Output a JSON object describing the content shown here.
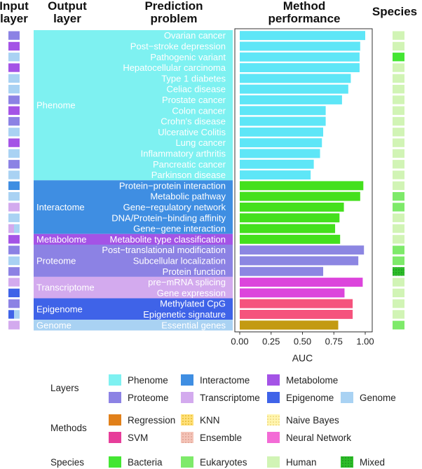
{
  "headers": {
    "input_layer": [
      "Input",
      "layer"
    ],
    "output_layer": [
      "Output",
      "layer"
    ],
    "prediction_problem": [
      "Prediction",
      "problem"
    ],
    "method_performance": [
      "Method",
      "performance"
    ],
    "species": "Species"
  },
  "colors": {
    "layers": {
      "Phenome": "#7ef1f1",
      "Interactome": "#3f8ee2",
      "Metabolome": "#a453e6",
      "Proteome": "#8c82e4",
      "Transcriptome": "#d3aaee",
      "Epigenome": "#3f63e8",
      "Genome": "#a9d2f3"
    },
    "methods": {
      "Regression": "#e1801a",
      "SVM": "#e73d9a",
      "KNN": "#ffe07a",
      "Ensemble": "#f0b6a8",
      "Naive Bayes": "#fff1a0",
      "Neural Network": "#f36bd6"
    },
    "bars": {
      "Neural Network": "#5ee6f7",
      "Interactome-NN": "#44e01d",
      "Proteome-NN": "#8c86e2",
      "Transcriptome-NN": "#dc45dc",
      "Epigenome-NN": "#f5537d",
      "Genome-NN": "#c39a12"
    },
    "species": {
      "Bacteria": "#44e633",
      "Eukaryotes": "#7eea6a",
      "Human": "#d1f4b5",
      "Mixed": "#2dbc29"
    }
  },
  "groups": [
    {
      "name": "Phenome",
      "start": 0,
      "count": 14
    },
    {
      "name": "Interactome",
      "start": 14,
      "count": 5
    },
    {
      "name": "Metabolome",
      "start": 19,
      "count": 1
    },
    {
      "name": "Proteome",
      "start": 20,
      "count": 3
    },
    {
      "name": "Transcriptome",
      "start": 23,
      "count": 2
    },
    {
      "name": "Epigenome",
      "start": 25,
      "count": 2
    },
    {
      "name": "Genome",
      "start": 27,
      "count": 1
    }
  ],
  "chart_data": {
    "type": "bar",
    "orientation": "horizontal",
    "xlabel": "AUC",
    "xlim": [
      0,
      1.05
    ],
    "ticks": [
      0.0,
      0.25,
      0.5,
      0.75,
      1.0
    ],
    "tick_labels": [
      "0.00",
      "0.25",
      "0.50",
      "0.75",
      "1.00"
    ],
    "categories": [
      "Ovarian cancer",
      "Post−stroke depression",
      "Pathogenic variant",
      "Hepatocellular carcinoma",
      "Type 1 diabetes",
      "Celiac disease",
      "Prostate cancer",
      "Colon cancer",
      "Crohn's disease",
      "Ulcerative Colitis",
      "Lung cancer",
      "Inflammatory arthritis",
      "Pancreatic cancer",
      "Parkinson disease",
      "Protein−protein interaction",
      "Metabolic pathway",
      "Gene−regulatory network",
      "DNA/Protein−binding affinity",
      "Gene−gene interaction",
      "Metabolite type classification",
      "Post−translational modification",
      "Subcellular localization",
      "Protein function",
      "pre−mRNA splicing",
      "Gene expression",
      "Methylated CpG",
      "Epigenetic signature",
      "Essential genes"
    ],
    "values": [
      1.0,
      0.96,
      0.955,
      0.955,
      0.885,
      0.865,
      0.815,
      0.685,
      0.685,
      0.665,
      0.655,
      0.64,
      0.59,
      0.565,
      0.985,
      0.96,
      0.83,
      0.795,
      0.76,
      0.8,
      0.99,
      0.945,
      0.665,
      0.98,
      0.835,
      0.9,
      0.9,
      0.785
    ],
    "bar_color_keys": [
      "Neural Network",
      "Neural Network",
      "Neural Network",
      "Neural Network",
      "Neural Network",
      "Neural Network",
      "Neural Network",
      "Neural Network",
      "Neural Network",
      "Neural Network",
      "Neural Network",
      "Neural Network",
      "Neural Network",
      "Neural Network",
      "Interactome-NN",
      "Interactome-NN",
      "Interactome-NN",
      "Interactome-NN",
      "Interactome-NN",
      "Interactome-NN",
      "Proteome-NN",
      "Proteome-NN",
      "Proteome-NN",
      "Transcriptome-NN",
      "Transcriptome-NN",
      "Epigenome-NN",
      "Epigenome-NN",
      "Genome-NN"
    ],
    "input_layer": [
      "Proteome",
      "Metabolome",
      "Genome",
      "Metabolome",
      "Genome",
      "Genome",
      "Proteome",
      "Metabolome",
      "Proteome",
      "Genome",
      "Metabolome",
      "Genome",
      "Proteome",
      "Genome",
      "Interactome",
      "Genome",
      "Transcriptome",
      "Genome",
      "Proteome",
      "Metabolome",
      "Proteome",
      "Genome",
      "Proteome",
      "Transcriptome",
      "Epigenome",
      "Proteome",
      [
        "Epigenome",
        "Genome"
      ],
      "Transcriptome"
    ],
    "input_layer_split_row3": [
      {
        "row": 18,
        "parts": [
          "Transcriptome",
          "Genome"
        ]
      }
    ],
    "species": [
      "Human",
      "Human",
      "Bacteria",
      "Human",
      "Human",
      "Human",
      "Human",
      "Human",
      "Human",
      "Human",
      "Human",
      "Human",
      "Human",
      "Human",
      "Human",
      "Eukaryotes",
      "Eukaryotes",
      "Human",
      "Human",
      "Human",
      "Eukaryotes",
      "Eukaryotes",
      "Mixed",
      "Human",
      "Human",
      "Human",
      "Human",
      "Eukaryotes"
    ]
  },
  "legend": {
    "layers_title": "Layers",
    "layers": [
      "Phenome",
      "Interactome",
      "Metabolome",
      "Proteome",
      "Transcriptome",
      "Epigenome",
      "Genome"
    ],
    "methods_title": "Methods",
    "methods": [
      "Regression",
      "KNN",
      "Naive Bayes",
      "SVM",
      "Ensemble",
      "Neural Network"
    ],
    "species_title": "Species",
    "species": [
      "Bacteria",
      "Eukaryotes",
      "Human",
      "Mixed"
    ]
  }
}
